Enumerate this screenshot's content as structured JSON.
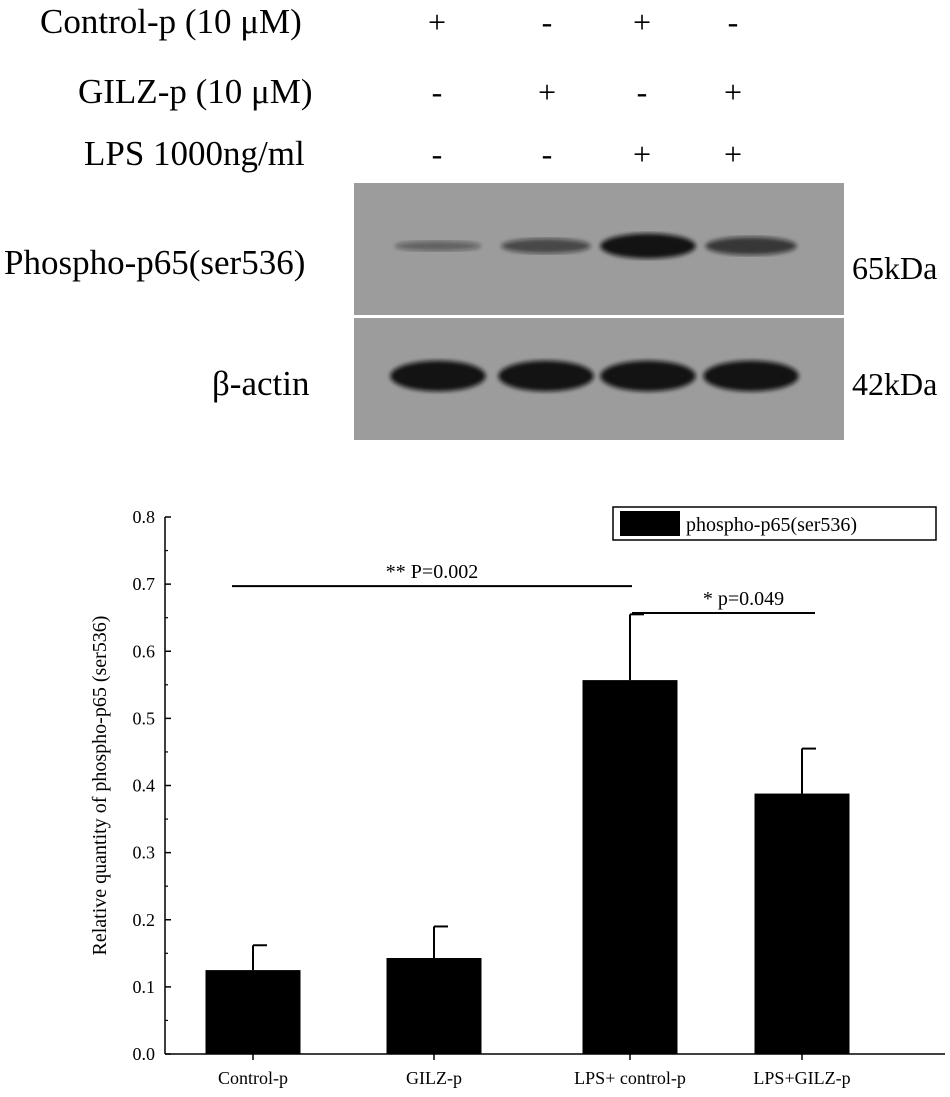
{
  "conditions": {
    "rows": [
      {
        "label": "Control-p (10 μM)",
        "marks": [
          "+",
          "-",
          "+",
          "-"
        ]
      },
      {
        "label": "GILZ-p (10 μM)",
        "marks": [
          "-",
          "+",
          "-",
          "+"
        ]
      },
      {
        "label": "LPS 1000ng/ml",
        "marks": [
          "-",
          "-",
          "+",
          "+"
        ]
      }
    ]
  },
  "blots": [
    {
      "label": "Phospho-p65(ser536)",
      "size": "65kDa",
      "band_intensity": [
        0.2,
        0.45,
        0.95,
        0.6
      ]
    },
    {
      "label": "β-actin",
      "size": "42kDa",
      "band_intensity": [
        0.95,
        0.95,
        0.95,
        0.95
      ]
    }
  ],
  "chart_data": {
    "type": "bar",
    "categories": [
      "Control-p",
      "GILZ-p",
      "LPS+ control-p",
      "LPS+GILZ-p"
    ],
    "series": [
      {
        "name": "phospho-p65(ser536)",
        "values": [
          0.125,
          0.143,
          0.557,
          0.388
        ],
        "errors": [
          0.037,
          0.047,
          0.098,
          0.067
        ]
      }
    ],
    "ylabel": "Relative quantity of phospho-p65 (ser536)",
    "xlabel": "",
    "ylim": [
      0.0,
      0.8
    ],
    "yticks": [
      "0.0",
      "0.1",
      "0.2",
      "0.3",
      "0.4",
      "0.5",
      "0.6",
      "0.7",
      "0.8"
    ],
    "legend_position": "top-right",
    "bar_color": "#000000",
    "annotations": [
      {
        "text": "** P=0.002",
        "from": 0,
        "to": 2,
        "level": 0.697
      },
      {
        "text": "* p=0.049",
        "from": 2,
        "to": 3,
        "level": 0.657
      }
    ]
  }
}
